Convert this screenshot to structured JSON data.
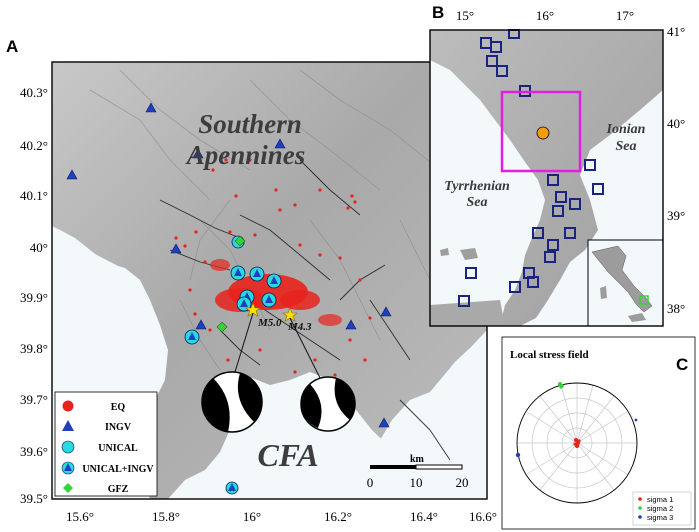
{
  "panels": {
    "a": {
      "letter": "A"
    },
    "b": {
      "letter": "B"
    },
    "c": {
      "letter": "C"
    }
  },
  "panel_a": {
    "region_label_line1": "Southern",
    "region_label_line2": "Apennines",
    "cfa_label": "CFA",
    "lat_ticks": [
      "40.3°",
      "40.2°",
      "40.1°",
      "40°",
      "39.9°",
      "39.8°",
      "39.7°",
      "39.6°",
      "39.5°"
    ],
    "lon_ticks": [
      "15.6°",
      "15.8°",
      "16°",
      "16.2°",
      "16.4°",
      "16.6°"
    ],
    "magnitudes": [
      "M5.0",
      "M4.3"
    ],
    "scale": {
      "unit": "km",
      "labels": [
        "0",
        "10",
        "20"
      ]
    },
    "legend": [
      {
        "label": "EQ",
        "symbol": "circle",
        "color": "#e8231c"
      },
      {
        "label": "INGV",
        "symbol": "triangle",
        "color": "#1f3fbf"
      },
      {
        "label": "UNICAL",
        "symbol": "circle",
        "color": "#2ad9e0"
      },
      {
        "label": "UNICAL+INGV",
        "symbol": "circle+triangle",
        "color": "#2ad9e0"
      },
      {
        "label": "GFZ",
        "symbol": "diamond",
        "color": "#37d23a"
      }
    ]
  },
  "panel_b": {
    "lon_ticks": [
      "15°",
      "16°",
      "17°"
    ],
    "lat_ticks": [
      "41°",
      "40°",
      "39°",
      "38°"
    ],
    "sea_labels": {
      "ionian": [
        "Ionian",
        "Sea"
      ],
      "tyrrhenian": [
        "Tyrrhenian",
        "Sea"
      ]
    },
    "colors": {
      "box": "#e020e0",
      "stations": "#1a237e",
      "epicenter": "#f39c12"
    }
  },
  "panel_c": {
    "title": "Local stress field",
    "legend": [
      {
        "label": "sigma 1",
        "color": "#e8231c"
      },
      {
        "label": "sigma 2",
        "color": "#37d23a"
      },
      {
        "label": "sigma 3",
        "color": "#1f3fbf"
      }
    ]
  }
}
